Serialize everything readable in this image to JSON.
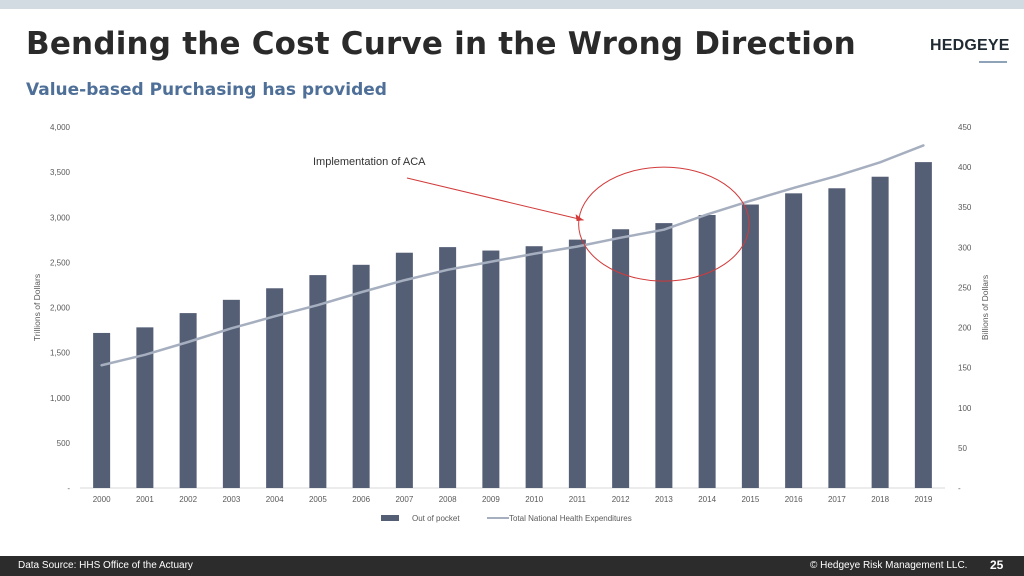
{
  "header": {
    "title": "Bending the Cost Curve in the Wrong Direction",
    "subtitle": "Value-based Purchasing has provided",
    "logo": "HEDGEYE"
  },
  "footer": {
    "source": "Data Source: HHS Office of the Actuary",
    "copyright": "© Hedgeye Risk Management LLC.",
    "page": "25"
  },
  "colors": {
    "bar": "#545e75",
    "line": "#a6afbf",
    "annotation": "#d23a3a"
  },
  "chart_data": {
    "type": "bar",
    "categories": [
      "2000",
      "2001",
      "2002",
      "2003",
      "2004",
      "2005",
      "2006",
      "2007",
      "2008",
      "2009",
      "2010",
      "2011",
      "2012",
      "2013",
      "2014",
      "2015",
      "2016",
      "2017",
      "2018",
      "2019"
    ],
    "series": [
      {
        "name": "Out of pocket",
        "type": "bar",
        "axis": "left",
        "values": [
          1718,
          1780,
          1938,
          2085,
          2213,
          2359,
          2473,
          2607,
          2669,
          2631,
          2679,
          2752,
          2867,
          2935,
          3025,
          3141,
          3265,
          3321,
          3449,
          3611
        ]
      },
      {
        "name": "Total National Health Expenditures",
        "type": "line",
        "axis": "right",
        "values": [
          153,
          166,
          182,
          199,
          214,
          228,
          244,
          259,
          272,
          282,
          292,
          301,
          312,
          322,
          341,
          358,
          374,
          389,
          406,
          427
        ]
      }
    ],
    "y_left": {
      "label": "Trillions of Dollars",
      "range": [
        0,
        4000
      ],
      "ticks": [
        "-",
        "500",
        "1,000",
        "1,500",
        "2,000",
        "2,500",
        "3,000",
        "3,500",
        "4,000"
      ]
    },
    "y_right": {
      "label": "Billions of Dollars",
      "range": [
        0,
        450
      ],
      "ticks": [
        "-",
        "50",
        "100",
        "150",
        "200",
        "250",
        "300",
        "350",
        "400",
        "450"
      ]
    },
    "annotation": {
      "text": "Implementation of ACA",
      "highlight_from": "2012",
      "highlight_to": "2014"
    },
    "legend_position": "bottom",
    "grid": false
  }
}
